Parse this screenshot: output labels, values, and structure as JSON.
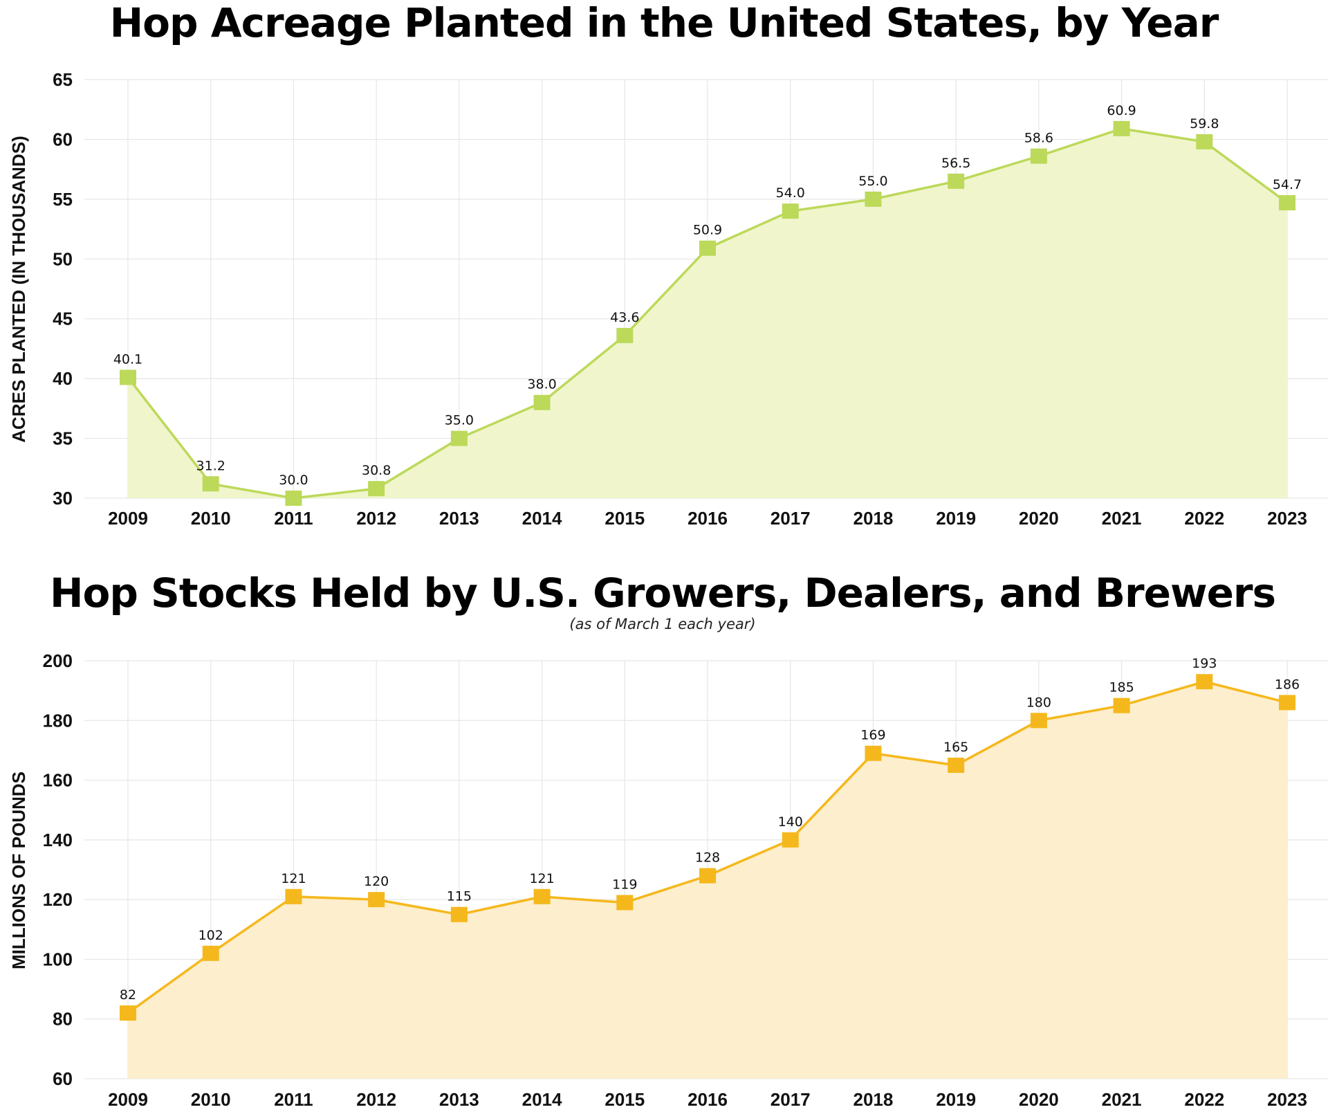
{
  "chart_data": [
    {
      "type": "area",
      "title": "Hop Acreage Planted in the United States, by Year",
      "subtitle": "",
      "xlabel": "",
      "ylabel": "ACRES PLANTED (IN THOUSANDS)",
      "categories": [
        "2009",
        "2010",
        "2011",
        "2012",
        "2013",
        "2014",
        "2015",
        "2016",
        "2017",
        "2018",
        "2019",
        "2020",
        "2021",
        "2022",
        "2023"
      ],
      "values": [
        40.1,
        31.2,
        30.0,
        30.8,
        35.0,
        38.0,
        43.6,
        50.9,
        54.0,
        55.0,
        56.5,
        58.6,
        60.9,
        59.8,
        54.7
      ],
      "labels": [
        "40.1",
        "31.2",
        "30.0",
        "30.8",
        "35.0",
        "38.0",
        "43.6",
        "50.9",
        "54.0",
        "55.0",
        "56.5",
        "58.6",
        "60.9",
        "59.8",
        "54.7"
      ],
      "ylim": [
        30,
        65
      ],
      "yticks": [
        30,
        35,
        40,
        45,
        50,
        55,
        60,
        65
      ],
      "grid": true,
      "line_color": "#bcd95a",
      "fill_color": "#f1f5cc",
      "marker": "square"
    },
    {
      "type": "area",
      "title": "Hop Stocks Held by U.S. Growers, Dealers, and Brewers",
      "subtitle": "(as of March 1 each year)",
      "xlabel": "",
      "ylabel": "MILLIONS OF POUNDS",
      "categories": [
        "2009",
        "2010",
        "2011",
        "2012",
        "2013",
        "2014",
        "2015",
        "2016",
        "2017",
        "2018",
        "2019",
        "2020",
        "2021",
        "2022",
        "2023"
      ],
      "values": [
        82,
        102,
        121,
        120,
        115,
        121,
        119,
        128,
        140,
        169,
        165,
        180,
        185,
        193,
        186
      ],
      "labels": [
        "82",
        "102",
        "121",
        "120",
        "115",
        "121",
        "119",
        "128",
        "140",
        "169",
        "165",
        "180",
        "185",
        "193",
        "186"
      ],
      "ylim": [
        60,
        200
      ],
      "yticks": [
        60,
        80,
        100,
        120,
        140,
        160,
        180,
        200
      ],
      "grid": true,
      "line_color": "#f5b81c",
      "fill_color": "#fdeecd",
      "marker": "square"
    }
  ]
}
